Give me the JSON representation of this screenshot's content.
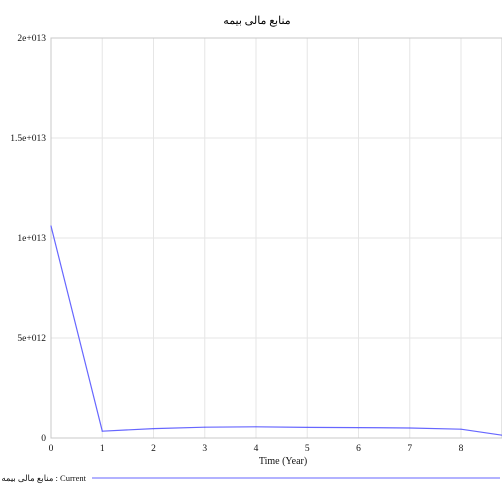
{
  "chart_data": {
    "type": "line",
    "title": "منابع مالی بیمه",
    "xlabel": "Time (Year)",
    "ylabel": "",
    "xlim": [
      0,
      8.8
    ],
    "ylim": [
      0,
      20000000000000
    ],
    "x_ticks": [
      0,
      1,
      2,
      3,
      4,
      5,
      6,
      7,
      8
    ],
    "y_ticks": [
      {
        "value": 0,
        "label": "0"
      },
      {
        "value": 5000000000000,
        "label": "5e+012"
      },
      {
        "value": 10000000000000,
        "label": "1e+013"
      },
      {
        "value": 15000000000000,
        "label": "1.5e+013"
      },
      {
        "value": 20000000000000,
        "label": "2e+013"
      }
    ],
    "grid": true,
    "legend_position": "bottom-left",
    "series": [
      {
        "name": "منابع مالی بیمه : Current",
        "color": "#6666ff",
        "x": [
          0,
          1,
          2,
          3,
          4,
          5,
          6,
          7,
          8,
          8.8
        ],
        "y": [
          10600000000000,
          340000000000,
          470000000000,
          540000000000,
          560000000000,
          530000000000,
          520000000000,
          500000000000,
          440000000000,
          140000000000
        ]
      }
    ]
  }
}
